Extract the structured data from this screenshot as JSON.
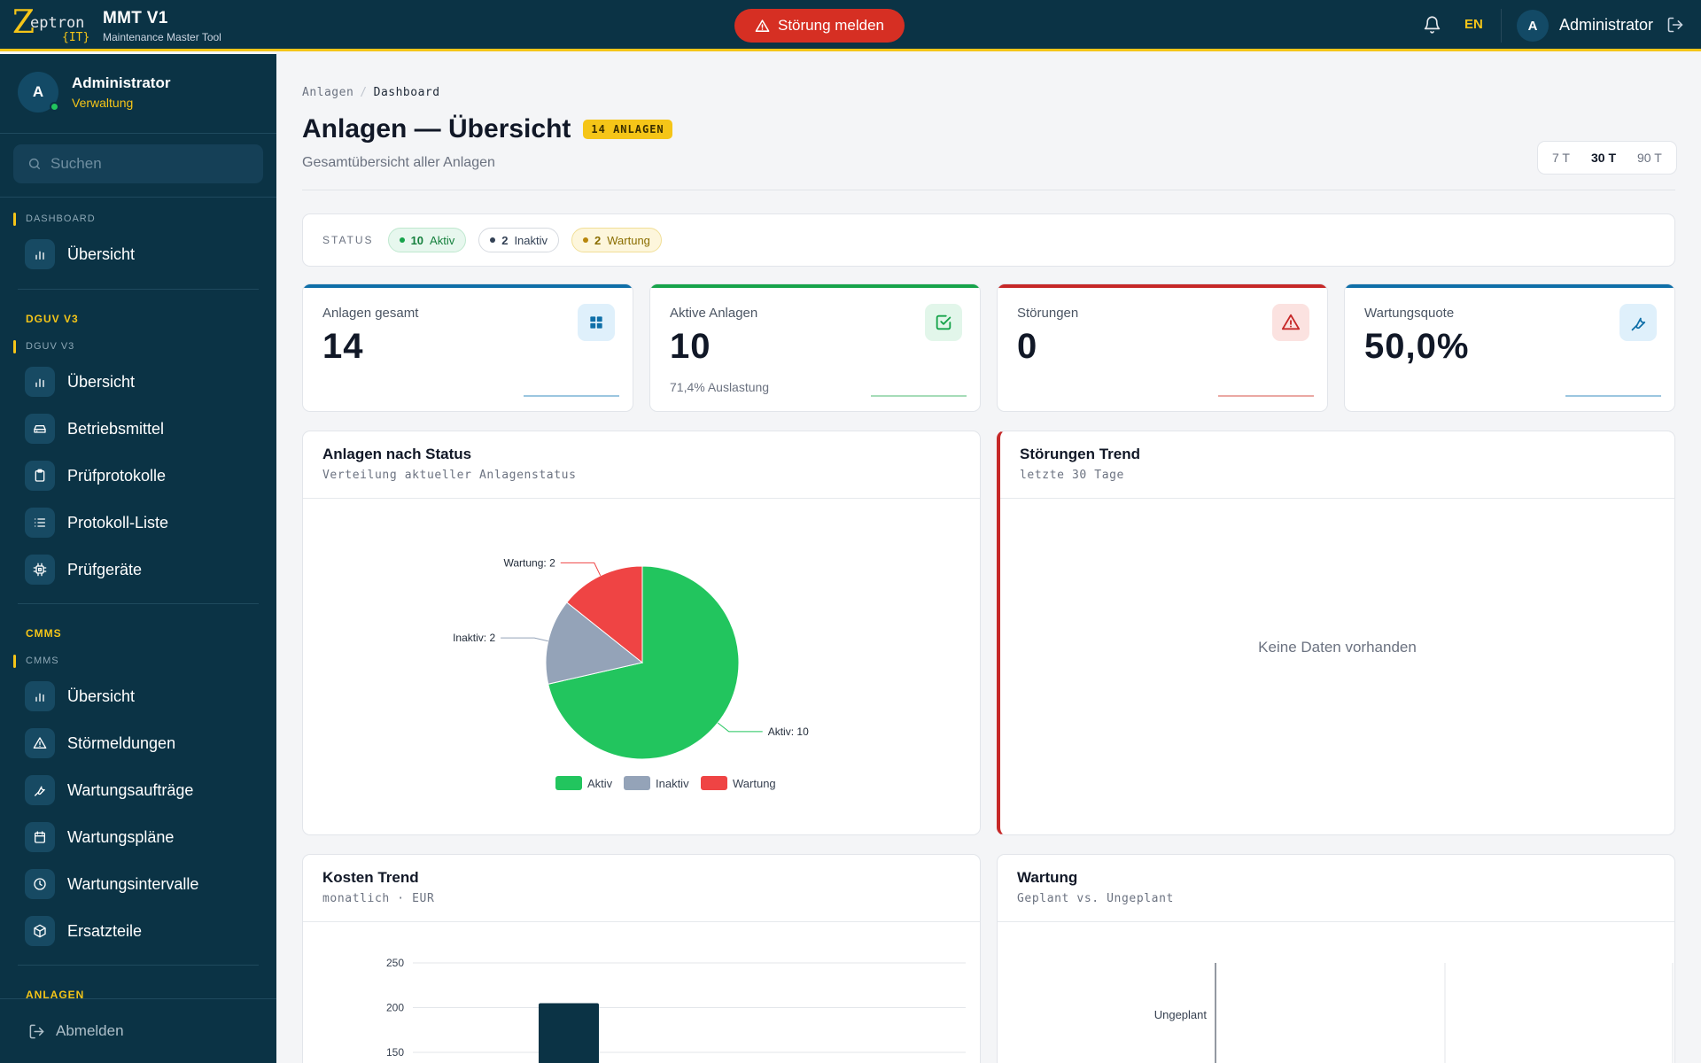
{
  "topbar": {
    "logo_letter": "Z",
    "logo_word": "eptron",
    "logo_it": "{IT}",
    "app_title": "MMT V1",
    "app_subtitle": "Maintenance Master Tool",
    "report_button": "Störung melden",
    "bell_icon": "bell-icon",
    "language": "EN",
    "avatar_initial": "A",
    "user_name": "Administrator",
    "accent": "#f5c518",
    "background": "#0b3345",
    "alert_color": "#d62f23"
  },
  "sidebar": {
    "avatar_initial": "A",
    "user_name": "Administrator",
    "user_role": "Verwaltung",
    "search_placeholder": "Suchen",
    "sections": {
      "dashboard": {
        "sub": "DASHBOARD",
        "items": [
          {
            "label": "Übersicht",
            "icon": "bar-chart-icon"
          }
        ]
      },
      "dguv": {
        "title": "DGUV V3",
        "sub": "DGUV V3",
        "items": [
          {
            "label": "Übersicht",
            "icon": "bar-chart-icon"
          },
          {
            "label": "Betriebsmittel",
            "icon": "drive-icon"
          },
          {
            "label": "Prüfprotokolle",
            "icon": "clipboard-icon"
          },
          {
            "label": "Protokoll-Liste",
            "icon": "list-icon"
          },
          {
            "label": "Prüfgeräte",
            "icon": "chip-icon"
          }
        ]
      },
      "cmms": {
        "title": "CMMS",
        "sub": "CMMS",
        "items": [
          {
            "label": "Übersicht",
            "icon": "bar-chart-icon"
          },
          {
            "label": "Störmeldungen",
            "icon": "warning-icon"
          },
          {
            "label": "Wartungsaufträge",
            "icon": "wrench-icon"
          },
          {
            "label": "Wartungspläne",
            "icon": "calendar-icon"
          },
          {
            "label": "Wartungsintervalle",
            "icon": "clock-icon"
          },
          {
            "label": "Ersatzteile",
            "icon": "package-icon"
          }
        ]
      },
      "anlagen": {
        "title": "ANLAGEN"
      }
    },
    "logout": "Abmelden"
  },
  "main": {
    "breadcrumb": {
      "parent": "Anlagen",
      "separator": "/",
      "current": "Dashboard"
    },
    "title": "Anlagen — Übersicht",
    "count_badge": "14 ANLAGEN",
    "subtitle": "Gesamtübersicht aller Anlagen",
    "range": {
      "options": [
        "7 T",
        "30 T",
        "90 T"
      ],
      "selected": "30 T"
    },
    "status": {
      "label": "STATUS",
      "pills": [
        {
          "count": "10",
          "label": "Aktiv"
        },
        {
          "count": "2",
          "label": "Inaktiv"
        },
        {
          "count": "2",
          "label": "Wartung"
        }
      ]
    },
    "kpis": [
      {
        "label": "Anlagen gesamt",
        "value": "14",
        "sub": "",
        "icon": "grid-icon",
        "color": "#0f6fa8"
      },
      {
        "label": "Aktive Anlagen",
        "value": "10",
        "sub": "71,4% Auslastung",
        "icon": "check-square-icon",
        "color": "#16a34a"
      },
      {
        "label": "Störungen",
        "value": "0",
        "sub": "",
        "icon": "warning-icon",
        "color": "#c62828"
      },
      {
        "label": "Wartungsquote",
        "value": "50,0%",
        "sub": "",
        "icon": "wrench-icon",
        "color": "#0f6fa8"
      }
    ],
    "cards": {
      "status": {
        "title": "Anlagen nach Status",
        "subtitle": "Verteilung aktueller Anlagenstatus"
      },
      "trend": {
        "title": "Störungen Trend",
        "subtitle": "letzte 30 Tage",
        "empty": "Keine Daten vorhanden"
      },
      "costs": {
        "title": "Kosten Trend",
        "subtitle": "monatlich · EUR"
      },
      "maintenance": {
        "title": "Wartung",
        "subtitle": "Geplant vs. Ungeplant"
      }
    }
  },
  "chart_data": [
    {
      "type": "pie",
      "categories": [
        "Aktiv",
        "Inaktiv",
        "Wartung"
      ],
      "values": [
        10,
        2,
        2
      ],
      "slice_labels": [
        "Aktiv: 10",
        "Inaktiv: 2",
        "Wartung: 2"
      ],
      "colors": [
        "#22c55e",
        "#94a3b8",
        "#ef4444"
      ],
      "legend": "bottom"
    },
    {
      "type": "bar",
      "y_ticks": [
        "250",
        "200",
        "150"
      ],
      "ylim": [
        150,
        250
      ],
      "values_visible": [
        205
      ],
      "color": "#0b3345",
      "grid": true
    },
    {
      "type": "bar",
      "orientation": "horizontal",
      "categories": [
        "Ungeplant"
      ],
      "grid": true
    }
  ]
}
